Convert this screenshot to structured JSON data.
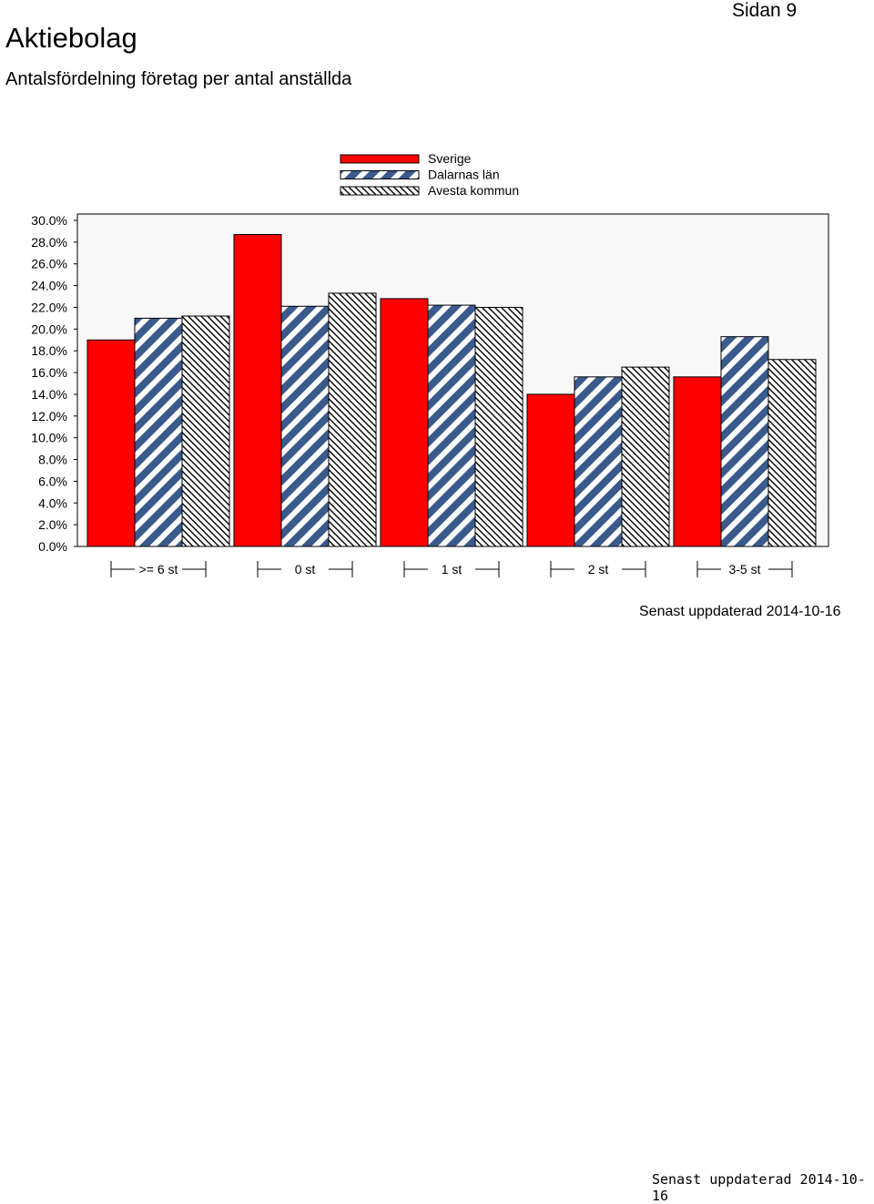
{
  "header": {
    "title": "Aktiebolag",
    "subtitle": "Antalsfördelning företag per antal anställda",
    "page_number": "Sidan 9"
  },
  "chart_data": {
    "type": "bar",
    "categories": [
      ">= 6 st",
      "0 st",
      "1 st",
      "2 st",
      "3-5 st"
    ],
    "series": [
      {
        "name": "Sverige",
        "values": [
          19.0,
          28.7,
          22.8,
          14.0,
          15.6
        ],
        "color": "#ff0000",
        "pattern": "solid"
      },
      {
        "name": "Dalarnas län",
        "values": [
          21.0,
          22.1,
          22.2,
          15.6,
          19.3
        ],
        "color": "#3a5a8c",
        "pattern": "wide-diagonal"
      },
      {
        "name": "Avesta kommun",
        "values": [
          21.2,
          23.3,
          22.0,
          16.5,
          17.2
        ],
        "color": "#000000",
        "pattern": "fine-diagonal"
      }
    ],
    "ylim": [
      0,
      30
    ],
    "yticks": [
      "0.0%",
      "2.0%",
      "4.0%",
      "6.0%",
      "8.0%",
      "10.0%",
      "12.0%",
      "14.0%",
      "16.0%",
      "18.0%",
      "20.0%",
      "22.0%",
      "24.0%",
      "26.0%",
      "28.0%",
      "30.0%"
    ],
    "legend_position": "top-center",
    "grid": false
  },
  "footer": {
    "updated": "Senast uppdaterad 2014-10-16",
    "footer_stamp": "Senast uppdaterad 2014-10-16"
  }
}
